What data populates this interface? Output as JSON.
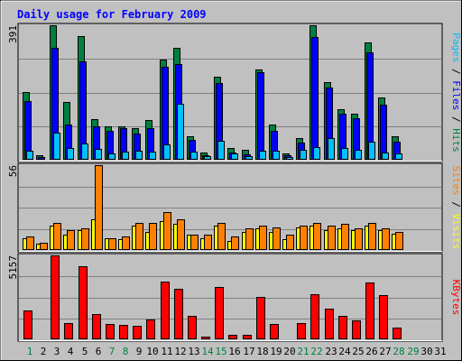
{
  "chart_data": {
    "type": "bar",
    "title": "Daily usage for February 2009",
    "categories": [
      "1",
      "2",
      "3",
      "4",
      "5",
      "6",
      "7",
      "8",
      "9",
      "10",
      "11",
      "12",
      "13",
      "14",
      "15",
      "16",
      "17",
      "18",
      "19",
      "20",
      "21",
      "22",
      "23",
      "24",
      "25",
      "26",
      "27",
      "28",
      "29",
      "30",
      "31"
    ],
    "weekend_days": [
      "1",
      "7",
      "8",
      "14",
      "15",
      "21",
      "22",
      "28",
      "29"
    ],
    "panels": [
      {
        "id": "hits-files-pages",
        "ymax_label": "391",
        "ymax": 391,
        "axis_label": [
          {
            "text": "Pages",
            "color": "#00c0ff"
          },
          {
            "text": " / ",
            "color": "#000000"
          },
          {
            "text": "Files",
            "color": "#0000ff"
          },
          {
            "text": " / ",
            "color": "#000000"
          },
          {
            "text": "Hits",
            "color": "#008040"
          }
        ],
        "series": [
          {
            "name": "Hits",
            "color": "#008040",
            "values": [
              196,
              12,
              391,
              167,
              359,
              117,
              98,
              98,
              93,
              115,
              290,
              325,
              67,
              21,
              241,
              33,
              30,
              263,
              102,
              18,
              62,
              391,
              225,
              147,
              135,
              341,
              182,
              67,
              0,
              0,
              0
            ]
          },
          {
            "name": "Files",
            "color": "#0000ff",
            "values": [
              170,
              7,
              325,
              102,
              287,
              98,
              85,
              93,
              75,
              93,
              270,
              278,
              57,
              14,
              224,
              21,
              15,
              255,
              85,
              12,
              49,
              356,
              210,
              133,
              120,
              311,
              159,
              52,
              0,
              0,
              0
            ]
          },
          {
            "name": "Pages",
            "color": "#00c0ff",
            "values": [
              26,
              2,
              80,
              34,
              46,
              31,
              18,
              23,
              26,
              23,
              44,
              162,
              23,
              10,
              54,
              18,
              10,
              26,
              26,
              8,
              28,
              36,
              64,
              34,
              28,
              52,
              21,
              18,
              0,
              0,
              0
            ]
          }
        ]
      },
      {
        "id": "visits-sites",
        "ymax_label": "56",
        "ymax": 56,
        "axis_label": [
          {
            "text": "Sites",
            "color": "#ff8000"
          },
          {
            "text": " / ",
            "color": "#000000"
          },
          {
            "text": "Visits",
            "color": "#ffff00"
          }
        ],
        "series": [
          {
            "name": "Visits",
            "color": "#ffff00",
            "values": [
              8,
              4,
              16,
              10,
              13,
              20,
              8,
              7,
              16,
              12,
              19,
              17,
              10,
              8,
              16,
              6,
              12,
              14,
              12,
              7,
              15,
              16,
              13,
              14,
              13,
              16,
              13,
              11,
              0,
              0,
              0
            ]
          },
          {
            "name": "Sites",
            "color": "#ff8000",
            "values": [
              9,
              5,
              18,
              13,
              14,
              56,
              8,
              9,
              18,
              18,
              25,
              20,
              10,
              10,
              18,
              9,
              14,
              16,
              15,
              10,
              16,
              18,
              16,
              17,
              14,
              18,
              14,
              12,
              0,
              0,
              0
            ]
          }
        ]
      },
      {
        "id": "kbytes",
        "ymax_label": "5157",
        "ymax": 5157,
        "axis_label": [
          {
            "text": "KBytes",
            "color": "#ff0000"
          }
        ],
        "series": [
          {
            "name": "KBytes",
            "color": "#ff0000",
            "values": [
              1797,
              42,
              5157,
              991,
              4470,
              1562,
              934,
              900,
              827,
              1223,
              3575,
              3112,
              1437,
              150,
              3226,
              280,
              280,
              2598,
              934,
              80,
              1008,
              2790,
              1872,
              1449,
              1149,
              3505,
              2720,
              743,
              0,
              0,
              0
            ]
          }
        ]
      }
    ]
  }
}
